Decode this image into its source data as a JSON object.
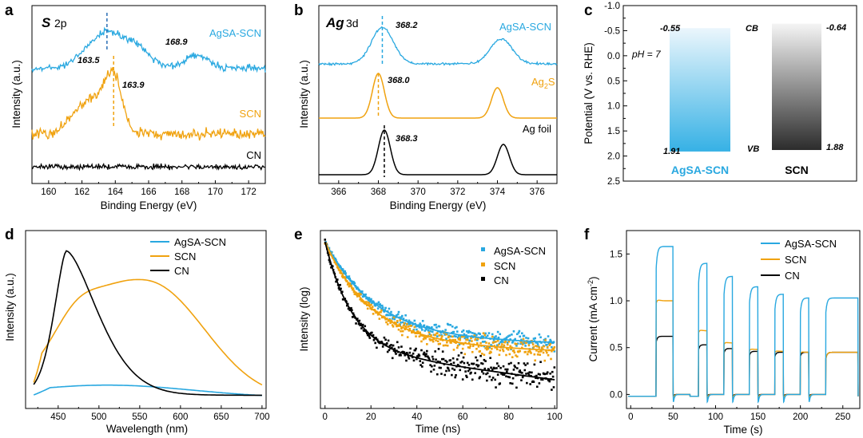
{
  "colors": {
    "agsa": "#29a8e0",
    "scn": "#f0a20f",
    "cn": "#000000",
    "ag2s": "#f0a20f",
    "agfoil": "#000000"
  },
  "chart_data": [
    {
      "panel": "a",
      "type": "line",
      "title_element": "S",
      "title_orbital": "2p",
      "xlabel": "Binding Energy (eV)",
      "ylabel": "Intensity (a.u.)",
      "xlim": [
        159,
        173
      ],
      "xticks": [
        160,
        162,
        164,
        166,
        168,
        170,
        172
      ],
      "series": [
        {
          "name": "AgSA-SCN",
          "peaks": [
            163.5,
            168.9
          ]
        },
        {
          "name": "SCN",
          "peaks": [
            163.9
          ]
        },
        {
          "name": "CN",
          "peaks": []
        }
      ],
      "annotations": [
        "163.5",
        "168.9",
        "163.9"
      ],
      "labels": [
        "AgSA-SCN",
        "SCN",
        "CN"
      ]
    },
    {
      "panel": "b",
      "type": "line",
      "title_element": "Ag",
      "title_orbital": "3d",
      "xlabel": "Binding Energy (eV)",
      "ylabel": "Intensity (a.u.)",
      "xlim": [
        365,
        377
      ],
      "xticks": [
        366,
        368,
        370,
        372,
        374,
        376
      ],
      "series": [
        {
          "name": "AgSA-SCN",
          "peaks": [
            368.2,
            374.2
          ]
        },
        {
          "name": "Ag2S",
          "peaks": [
            368.0,
            374.0
          ]
        },
        {
          "name": "Ag foil",
          "peaks": [
            368.3,
            374.3
          ]
        }
      ],
      "annotations": [
        "368.2",
        "368.0",
        "368.3"
      ],
      "labels": {
        "agsa": "AgSA-SCN",
        "ag2s_main": "Ag",
        "ag2s_sub": "2",
        "ag2s_tail": "S",
        "agfoil": "Ag foil"
      }
    },
    {
      "panel": "c",
      "type": "bar",
      "ylabel": "Potential (V vs. RHE)",
      "ylim": [
        2.5,
        -1.0
      ],
      "yticks": [
        "-1.0",
        "-0.5",
        "0.0",
        "0.5",
        "1.0",
        "1.5",
        "2.0",
        "2.5"
      ],
      "categories": [
        "AgSA-SCN",
        "SCN"
      ],
      "series": [
        {
          "name": "CB",
          "values": [
            -0.55,
            -0.64
          ]
        },
        {
          "name": "VB",
          "values": [
            1.91,
            1.88
          ]
        }
      ],
      "texts": {
        "cb": "CB",
        "vb": "VB",
        "ph": "pH = 7",
        "agsa_cb": "-0.55",
        "scn_cb": "-0.64",
        "agsa_vb": "1.91",
        "scn_vb": "1.88"
      }
    },
    {
      "panel": "d",
      "type": "line",
      "xlabel": "Wavelength (nm)",
      "ylabel": "Intensity (a.u.)",
      "xlim": [
        410,
        705
      ],
      "xticks": [
        450,
        500,
        550,
        600,
        650,
        700
      ],
      "series": [
        {
          "name": "AgSA-SCN",
          "peak_x": 510,
          "peak_y": 0.09
        },
        {
          "name": "SCN",
          "peak_x": 550,
          "peak_y": 0.82
        },
        {
          "name": "CN",
          "peak_x": 460,
          "peak_y": 1.0
        }
      ],
      "legend": [
        "AgSA-SCN",
        "SCN",
        "CN"
      ],
      "legend_position": "top-right"
    },
    {
      "panel": "e",
      "type": "scatter",
      "xlabel": "Time (ns)",
      "ylabel": "Intensity (log)",
      "xlim": [
        -2,
        101
      ],
      "xticks": [
        0,
        20,
        40,
        60,
        80,
        100
      ],
      "series": [
        {
          "name": "AgSA-SCN",
          "decay": "slow"
        },
        {
          "name": "SCN",
          "decay": "medium"
        },
        {
          "name": "CN",
          "decay": "fast"
        }
      ],
      "legend": [
        "AgSA-SCN",
        "SCN",
        "CN"
      ],
      "legend_position": "top-right"
    },
    {
      "panel": "f",
      "type": "line",
      "xlabel": "Time (s)",
      "ylabel_main": "Current (mA cm",
      "ylabel_sup": "-2",
      "ylabel_end": ")",
      "xlim": [
        -5,
        270
      ],
      "ylim": [
        -0.15,
        1.75
      ],
      "xticks": [
        0,
        50,
        100,
        150,
        200,
        250
      ],
      "yticks": [
        0.0,
        0.5,
        1.0,
        1.5
      ],
      "on_times": [
        30,
        80,
        110,
        140,
        170,
        200,
        230
      ],
      "series": [
        {
          "name": "AgSA-SCN",
          "plateaus": [
            1.58,
            1.4,
            1.26,
            1.15,
            1.07,
            1.03
          ]
        },
        {
          "name": "SCN",
          "plateaus": [
            1.0,
            0.68,
            0.55,
            0.48,
            0.46,
            0.45
          ]
        },
        {
          "name": "CN",
          "plateaus": [
            0.62,
            0.53,
            0.49,
            0.46,
            0.45,
            0.45
          ]
        }
      ],
      "legend": [
        "AgSA-SCN",
        "SCN",
        "CN"
      ],
      "legend_position": "top-right"
    }
  ]
}
